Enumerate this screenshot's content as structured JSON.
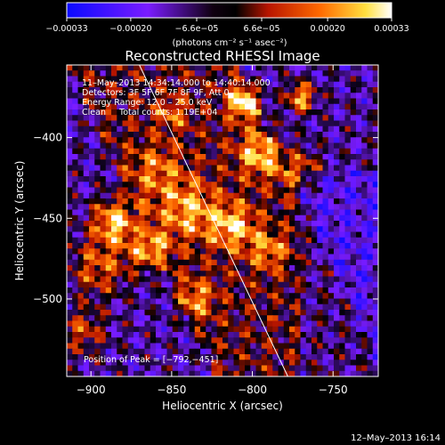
{
  "chart_data": {
    "type": "heatmap",
    "title": "Reconstructed RHESSI Image",
    "xlabel": "Heliocentric X (arcsec)",
    "ylabel": "Heliocentric Y (arcsec)",
    "xlim": [
      -915,
      -722
    ],
    "ylim": [
      -548,
      -355
    ],
    "x_ticks": [
      -900,
      -850,
      -800,
      -750
    ],
    "x_tick_labels": [
      "−900",
      "−850",
      "−800",
      "−750"
    ],
    "y_ticks": [
      -500,
      -450,
      -400
    ],
    "y_tick_labels": [
      "−500",
      "−450",
      "−400"
    ],
    "colorbar": {
      "range": [
        -0.00033,
        0.00033
      ],
      "ticks": [
        -0.00033,
        -0.0002,
        -6.6e-05,
        6.6e-05,
        0.0002,
        0.00033
      ],
      "tick_labels": [
        "−0.00033",
        "−0.00020",
        "−6.6e−05",
        "6.6e−05",
        "0.00020",
        "0.00033"
      ],
      "units_label": "(photons cm⁻² s⁻¹ asec⁻²)",
      "colors": [
        "#0a0aff",
        "#7a1cff",
        "#000000",
        "#b81500",
        "#ff6a00",
        "#ffe040",
        "#ffffff"
      ]
    },
    "annotations": [
      "11–May–2013 14:34:14.000 to 14:40:14.000",
      "Detectors: 3F 5F 6F 7F 8F 9F, Att 0",
      "Energy Range: 12.0 – 25.0 keV",
      "Clean     Total counts: 1.19E+04"
    ],
    "peak_label": "Position of Peak = [−792,−451]",
    "peak": [
      -792,
      -451
    ],
    "limb_line": [
      [
        -870,
        -355
      ],
      [
        -778,
        -548
      ]
    ],
    "grid": false
  },
  "timestamp": "12–May–2013 16:14"
}
